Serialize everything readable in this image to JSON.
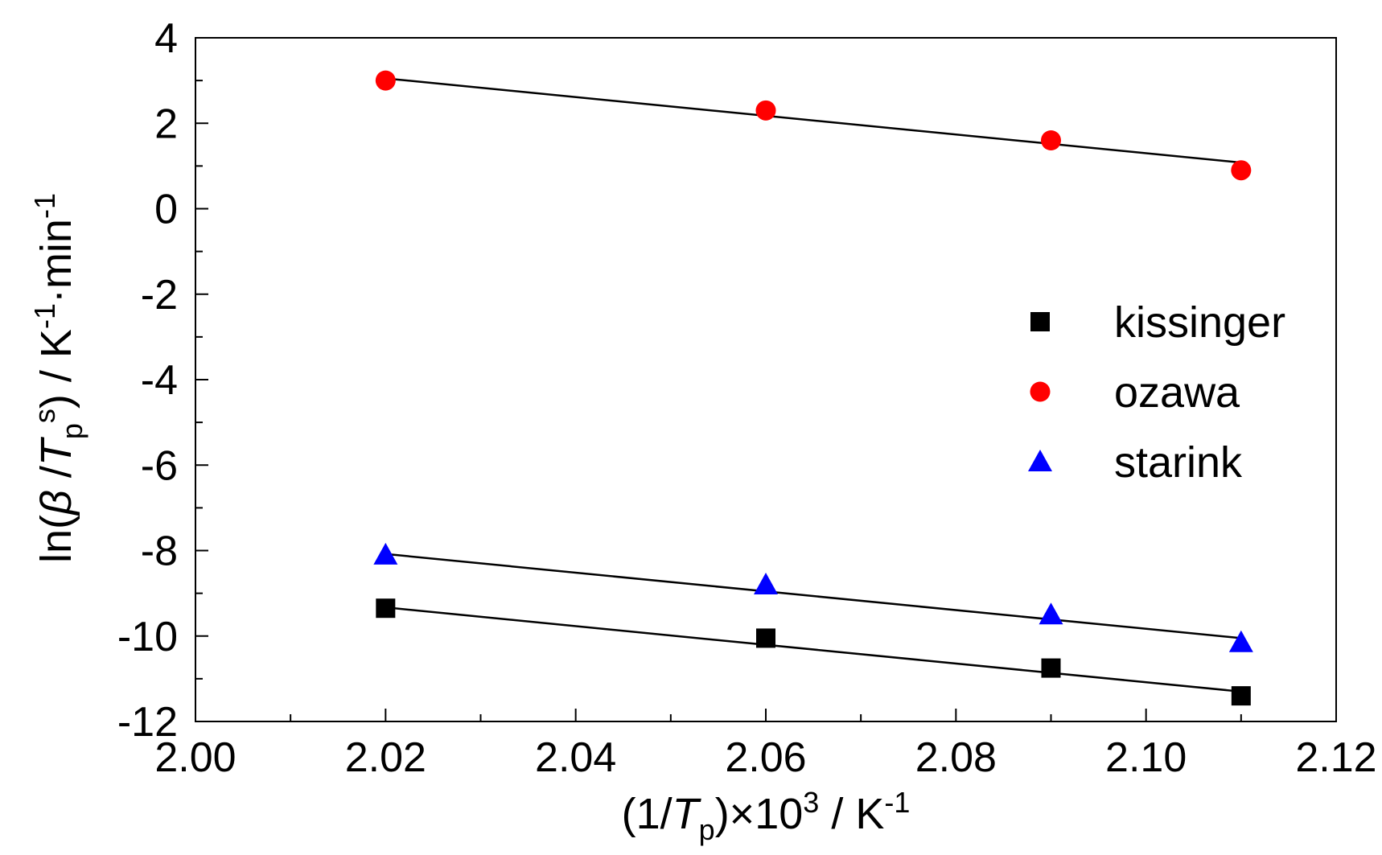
{
  "chart_data": {
    "type": "scatter",
    "title": "",
    "xlabel": "(1/Tp)×10³ / K⁻¹",
    "ylabel": "ln(β/Tpˢ) / K⁻¹·min⁻¹",
    "xlabel_parts": {
      "open": "(1/",
      "var": "T",
      "sub": "p",
      "mid": ")×10",
      "sup": "3",
      "unit": " / K",
      "unit_sup": "-1"
    },
    "ylabel_parts": {
      "fn": "ln(",
      "beta": "β",
      "slash": " /",
      "var": "T",
      "sub": "p",
      "sup": "s",
      "close": ") / K",
      "sup2": "-1",
      "mid": "·min",
      "sup3": "-1"
    },
    "xlim": [
      2.0,
      2.12
    ],
    "ylim": [
      -12,
      4
    ],
    "xticks": [
      "2.00",
      "2.02",
      "2.04",
      "2.06",
      "2.08",
      "2.10",
      "2.12"
    ],
    "yticks": [
      "-12",
      "-10",
      "-8",
      "-6",
      "-4",
      "-2",
      "0",
      "2",
      "4"
    ],
    "grid": false,
    "legend_position": "right",
    "series": [
      {
        "name": "kissinger",
        "marker": "square",
        "color": "#000000",
        "x": [
          2.02,
          2.06,
          2.09,
          2.11
        ],
        "y": [
          -9.35,
          -10.05,
          -10.75,
          -11.4
        ],
        "fit": {
          "x": [
            2.02,
            2.11
          ],
          "y": [
            -9.33,
            -11.3
          ]
        }
      },
      {
        "name": "ozawa",
        "marker": "circle",
        "color": "#ff0000",
        "x": [
          2.02,
          2.06,
          2.09,
          2.11
        ],
        "y": [
          3.0,
          2.3,
          1.6,
          0.9
        ],
        "fit": {
          "x": [
            2.02,
            2.11
          ],
          "y": [
            3.05,
            1.08
          ]
        }
      },
      {
        "name": "starink",
        "marker": "triangle",
        "color": "#0000ff",
        "x": [
          2.02,
          2.06,
          2.09,
          2.11
        ],
        "y": [
          -8.1,
          -8.8,
          -9.5,
          -10.15
        ],
        "fit": {
          "x": [
            2.02,
            2.11
          ],
          "y": [
            -8.08,
            -10.05
          ]
        }
      }
    ]
  }
}
